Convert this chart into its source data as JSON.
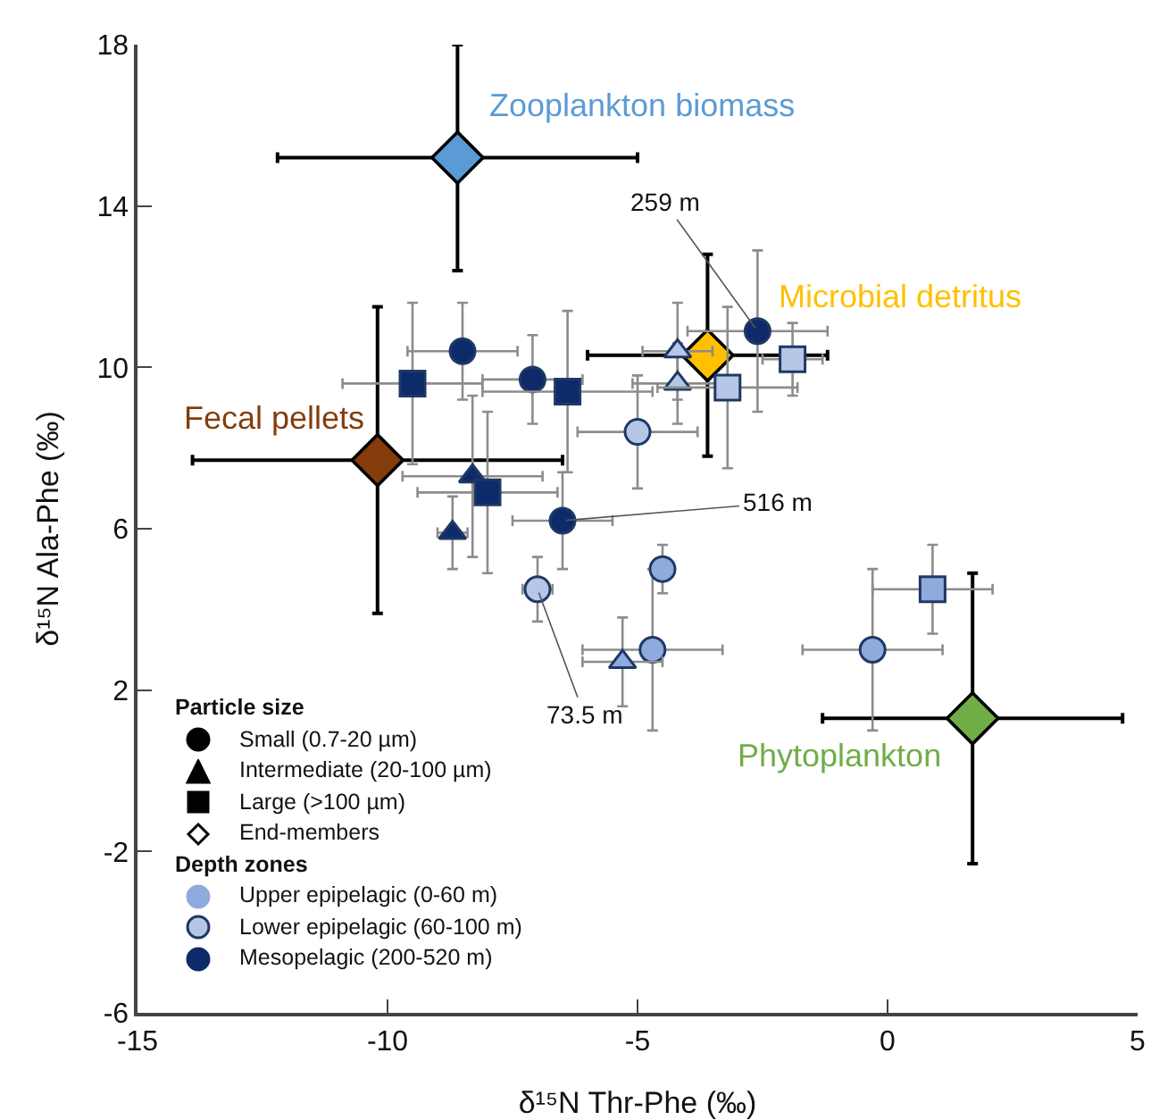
{
  "chart_data": {
    "type": "scatter",
    "xlabel": "δ¹⁵N Thr-Phe (‰)",
    "ylabel": "δ¹⁵N Ala-Phe (‰)",
    "xlim": [
      -15,
      5
    ],
    "xticks": [
      -15,
      -10,
      -5,
      0,
      5
    ],
    "ylim": [
      -6,
      18
    ],
    "yticks": [
      -6,
      -2,
      2,
      6,
      10,
      14,
      18
    ],
    "grid": false,
    "series": [
      {
        "color": "#0d2a6b",
        "marker": "circle",
        "x": [
          -8.5,
          -7.1,
          -6.5,
          -2.6
        ],
        "values": [
          10.4,
          9.7,
          6.2,
          10.9
        ],
        "xerrors": [
          1.1,
          1.0,
          1.0,
          1.4
        ],
        "errors": [
          1.2,
          1.1,
          1.2,
          2.0
        ]
      },
      {
        "color": "#0d2a6b",
        "marker": "triangle",
        "x": [
          -8.3,
          -8.7
        ],
        "values": [
          7.3,
          5.9
        ],
        "xerrors": [
          1.4,
          0.3
        ],
        "errors": [
          2.0,
          0.9
        ]
      },
      {
        "color": "#0d2a6b",
        "marker": "square",
        "x": [
          -9.5,
          -6.4,
          -8.0
        ],
        "values": [
          9.6,
          9.4,
          6.9
        ],
        "xerrors": [
          1.4,
          1.7,
          1.4
        ],
        "errors": [
          2.0,
          2.0,
          2.0
        ]
      },
      {
        "color": "#b4c7e7",
        "marker": "circle",
        "x": [
          -7.0,
          -5.0
        ],
        "values": [
          4.5,
          8.4
        ],
        "xerrors": [
          0.3,
          1.2
        ],
        "errors": [
          0.8,
          1.4
        ]
      },
      {
        "color": "#b4c7e7",
        "marker": "triangle",
        "x": [
          -4.2,
          -4.2
        ],
        "values": [
          10.4,
          9.6
        ],
        "xerrors": [
          0.7,
          0.9
        ],
        "errors": [
          1.2,
          1.0
        ]
      },
      {
        "color": "#b4c7e7",
        "marker": "square",
        "x": [
          -3.2,
          -1.9
        ],
        "values": [
          9.5,
          10.2
        ],
        "xerrors": [
          1.4,
          0.6
        ],
        "errors": [
          2.0,
          0.9
        ]
      },
      {
        "color": "#8faadc",
        "marker": "circle",
        "x": [
          -4.5,
          -4.7,
          -0.3
        ],
        "values": [
          5.0,
          3.0,
          3.0
        ],
        "xerrors": [
          0.2,
          1.4,
          1.4
        ],
        "errors": [
          0.6,
          2.0,
          2.0
        ]
      },
      {
        "color": "#8faadc",
        "marker": "triangle",
        "x": [
          -5.3
        ],
        "values": [
          2.7
        ],
        "xerrors": [
          0.8
        ],
        "errors": [
          1.1
        ]
      },
      {
        "color": "#8faadc",
        "marker": "square",
        "x": [
          0.9
        ],
        "values": [
          4.5
        ],
        "xerrors": [
          1.2
        ],
        "errors": [
          1.1
        ]
      },
      {
        "name": "Zooplankton biomass",
        "color": "#5b9bd5",
        "marker": "diamond",
        "x": [
          -8.6
        ],
        "values": [
          15.2
        ],
        "xerrors": [
          3.6
        ],
        "errors": [
          2.8
        ]
      },
      {
        "name": "Fecal pellets",
        "color": "#843c0c",
        "marker": "diamond",
        "x": [
          -10.2
        ],
        "values": [
          7.7
        ],
        "xerrors": [
          3.7
        ],
        "errors": [
          3.8
        ]
      },
      {
        "name": "Microbial detritus",
        "color": "#ffc000",
        "marker": "diamond",
        "x": [
          -3.6
        ],
        "values": [
          10.3
        ],
        "xerrors": [
          2.4
        ],
        "errors": [
          2.5
        ]
      },
      {
        "name": "Phytoplankton",
        "color": "#70ad47",
        "marker": "diamond",
        "x": [
          1.7
        ],
        "values": [
          1.3
        ],
        "xerrors": [
          3.0
        ],
        "errors": [
          3.6
        ]
      }
    ],
    "annotations": [
      {
        "text": "259 m",
        "x": -2.6,
        "y": 10.9
      },
      {
        "text": "516 m",
        "x": -6.5,
        "y": 6.2
      },
      {
        "text": "73.5 m",
        "x": -7.0,
        "y": 4.5
      },
      "Particle size",
      "Small (0.7-20 µm)",
      "Intermediate (20-100 µm)",
      "Large (>100 µm)",
      "End-members",
      "Depth zones",
      "Upper epipelagic (0-60 m)",
      "Lower epipelagic (60-100 m)",
      "Mesopelagic (200-520 m)"
    ]
  }
}
